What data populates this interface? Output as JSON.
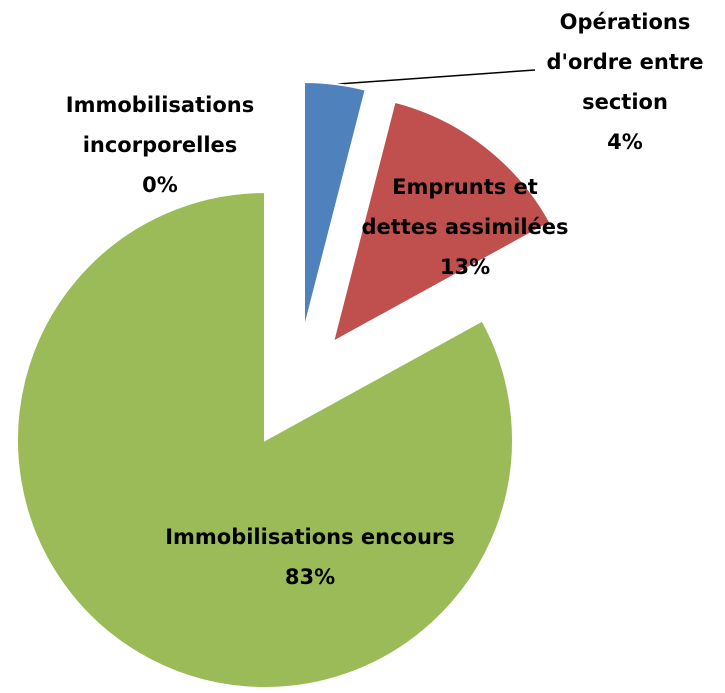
{
  "chart_data": {
    "type": "pie",
    "categories": [
      "Immobilisations incorporelles",
      "Opérations d'ordre entre section",
      "Emprunts et dettes assimilées",
      "Immobilisations encours"
    ],
    "values": [
      0,
      4,
      13,
      83
    ],
    "value_labels": [
      "0%",
      "4%",
      "13%",
      "83%"
    ],
    "colors": [
      "#ffffff",
      "#4f81bd",
      "#c0504d",
      "#9bbb59"
    ]
  }
}
